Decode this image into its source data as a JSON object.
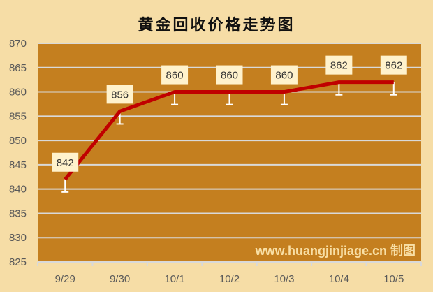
{
  "chart_data": {
    "type": "line",
    "title": "黄金回收价格走势图",
    "categories": [
      "9/29",
      "9/30",
      "10/1",
      "10/2",
      "10/3",
      "10/4",
      "10/5"
    ],
    "values": [
      842,
      856,
      860,
      860,
      860,
      862,
      862
    ],
    "data_labels": [
      "842",
      "856",
      "860",
      "860",
      "860",
      "862",
      "862"
    ],
    "error_bars": {
      "direction": "minus",
      "amount": 2.6
    },
    "ylim": [
      825,
      870
    ],
    "yticks": [
      825,
      830,
      835,
      840,
      845,
      850,
      855,
      860,
      865,
      870
    ],
    "xlabel": "",
    "ylabel": "",
    "grid": true,
    "watermark": "www.huangjinjiage.cn 制图",
    "colors": {
      "background": "#f6dda6",
      "plot_area": "#c47f1f",
      "line": "#c00000",
      "label_box": "#fff2cc",
      "grid": "#d9d9d9",
      "error_bar": "#ffffff"
    }
  }
}
